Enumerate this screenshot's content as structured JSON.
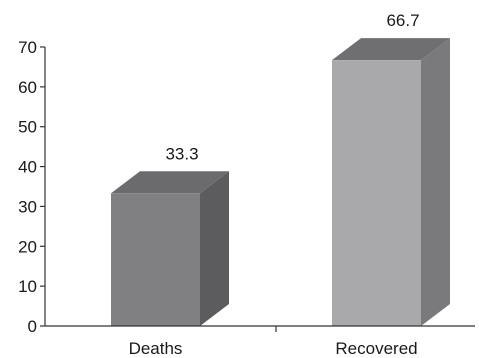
{
  "chart_data": {
    "type": "bar",
    "style": "3d",
    "title": "",
    "xlabel": "",
    "ylabel": "",
    "categories": [
      "Deaths",
      "Recovered"
    ],
    "values": [
      33.3,
      66.7
    ],
    "data_labels": [
      "33.3",
      "66.7"
    ],
    "ylim": [
      0,
      70
    ],
    "yticks": [
      0,
      10,
      20,
      30,
      40,
      50,
      60,
      70
    ],
    "ytick_labels": [
      "0",
      "10",
      "20",
      "30",
      "40",
      "50",
      "60",
      "70"
    ],
    "grid": false,
    "legend": "none",
    "colors": {
      "bars": [
        {
          "front": "#808083",
          "side": "#5c5c5f",
          "top": "#6b6b6e"
        },
        {
          "front": "#a9a9ac",
          "side": "#7a7a7d",
          "top": "#6f6f72"
        }
      ],
      "axis": "#333333"
    }
  }
}
